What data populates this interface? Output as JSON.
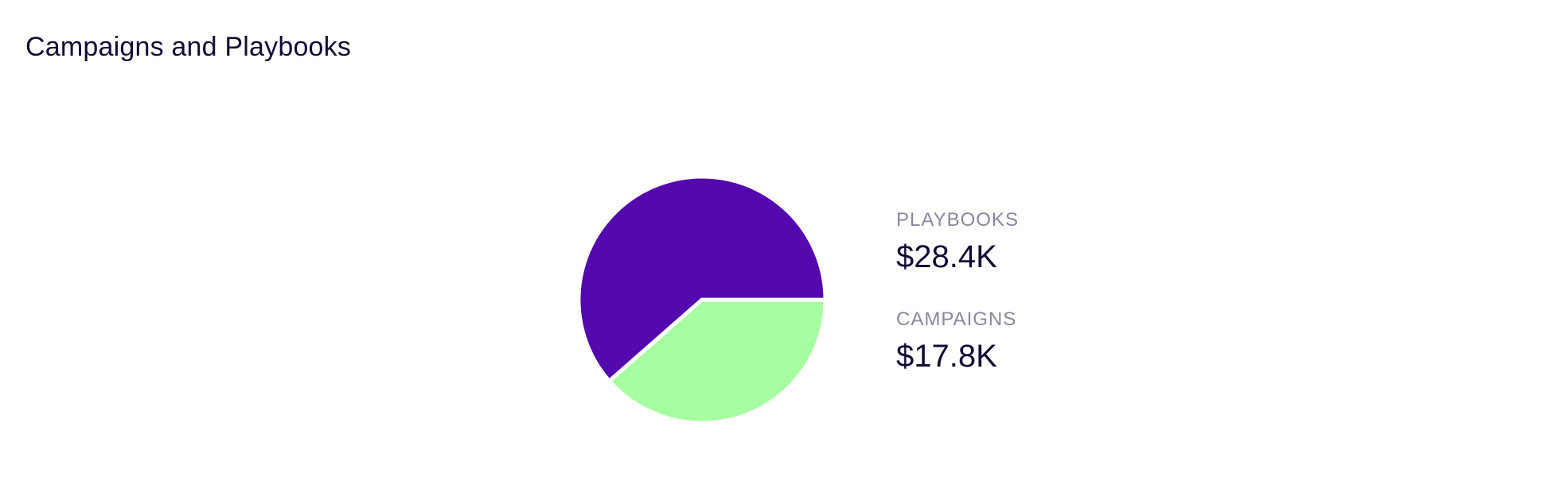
{
  "card": {
    "title": "Campaigns and Playbooks"
  },
  "colors": {
    "playbooks": "#5309ad",
    "campaigns": "#a6ffa0",
    "separator": "#ffffff"
  },
  "chart_data": {
    "type": "pie",
    "title": "Campaigns and Playbooks",
    "categories": [
      "PLAYBOOKS",
      "CAMPAIGNS"
    ],
    "values": [
      28.4,
      17.8
    ],
    "unit": "$K",
    "display_values": [
      "$28.4K",
      "$17.8K"
    ],
    "legend_position": "right",
    "series": [
      {
        "name": "PLAYBOOKS",
        "value": 28.4,
        "display": "$28.4K",
        "color": "#5309ad"
      },
      {
        "name": "CAMPAIGNS",
        "value": 17.8,
        "display": "$17.8K",
        "color": "#a6ffa0"
      }
    ]
  }
}
